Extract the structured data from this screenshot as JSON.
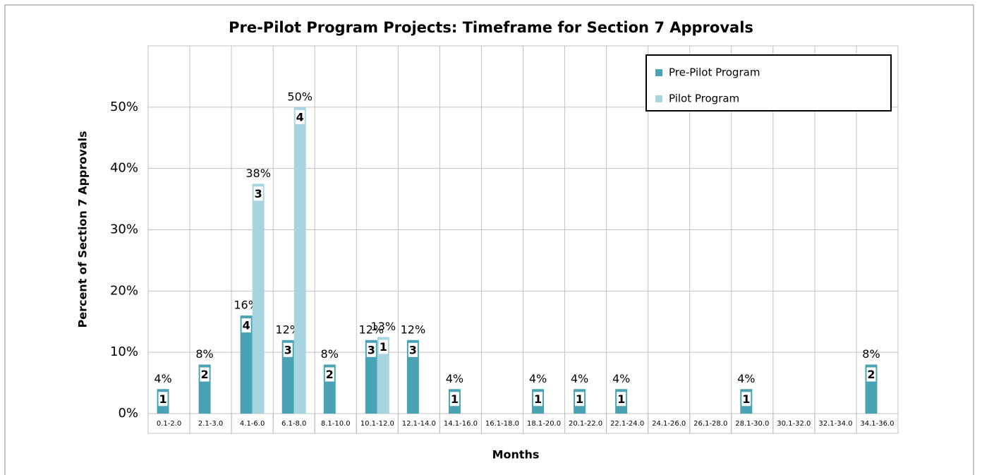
{
  "chart_data": {
    "type": "bar",
    "title": "Pre-Pilot Program Projects: Timeframe for Section 7 Approvals",
    "x_label": "Months",
    "y_label": "Percent of Section 7 Approvals",
    "categories": [
      "0.1-2.0",
      "2.1-3.0",
      "4.1-6.0",
      "6.1-8.0",
      "8.1-10.0",
      "10.1-12.0",
      "12.1-14.0",
      "14.1-16.0",
      "16.1-18.0",
      "18.1-20.0",
      "20.1-22.0",
      "22.1-24.0",
      "24.1-26.0",
      "26.1-28.0",
      "28.1-30.0",
      "30.1-32.0",
      "32.1-34.0",
      "34.1-36.0"
    ],
    "series": [
      {
        "name": "Pre-Pilot Program",
        "color": "#4aa3b5",
        "values": [
          4,
          8,
          16,
          12,
          8,
          12,
          12,
          4,
          null,
          4,
          4,
          4,
          null,
          null,
          4,
          null,
          null,
          8
        ],
        "value_labels": [
          "4%",
          "8%",
          "16%",
          "12%",
          "8%",
          "12%",
          "12%",
          "4%",
          null,
          "4%",
          "4%",
          "4%",
          null,
          null,
          "4%",
          null,
          null,
          "8%"
        ],
        "counts": [
          1,
          2,
          4,
          3,
          2,
          3,
          3,
          1,
          null,
          1,
          1,
          1,
          null,
          null,
          1,
          null,
          null,
          2
        ]
      },
      {
        "name": "Pilot Program",
        "color": "#a6d5e0",
        "values": [
          null,
          null,
          37.5,
          50,
          null,
          12.5,
          null,
          null,
          null,
          null,
          null,
          null,
          null,
          null,
          null,
          null,
          null,
          null
        ],
        "value_labels": [
          null,
          null,
          "38%",
          "50%",
          null,
          "13%",
          null,
          null,
          null,
          null,
          null,
          null,
          null,
          null,
          null,
          null,
          null,
          null
        ],
        "counts": [
          null,
          null,
          3,
          4,
          null,
          1,
          null,
          null,
          null,
          null,
          null,
          null,
          null,
          null,
          null,
          null,
          null,
          null
        ]
      }
    ],
    "ylim": [
      0,
      60
    ],
    "yticks": [
      {
        "value": 0,
        "label": "0%"
      },
      {
        "value": 10,
        "label": "10%"
      },
      {
        "value": 20,
        "label": "20%"
      },
      {
        "value": 30,
        "label": "30%"
      },
      {
        "value": 40,
        "label": "40%"
      },
      {
        "value": 50,
        "label": "50%"
      }
    ],
    "grid": true,
    "legend": "upper right"
  }
}
